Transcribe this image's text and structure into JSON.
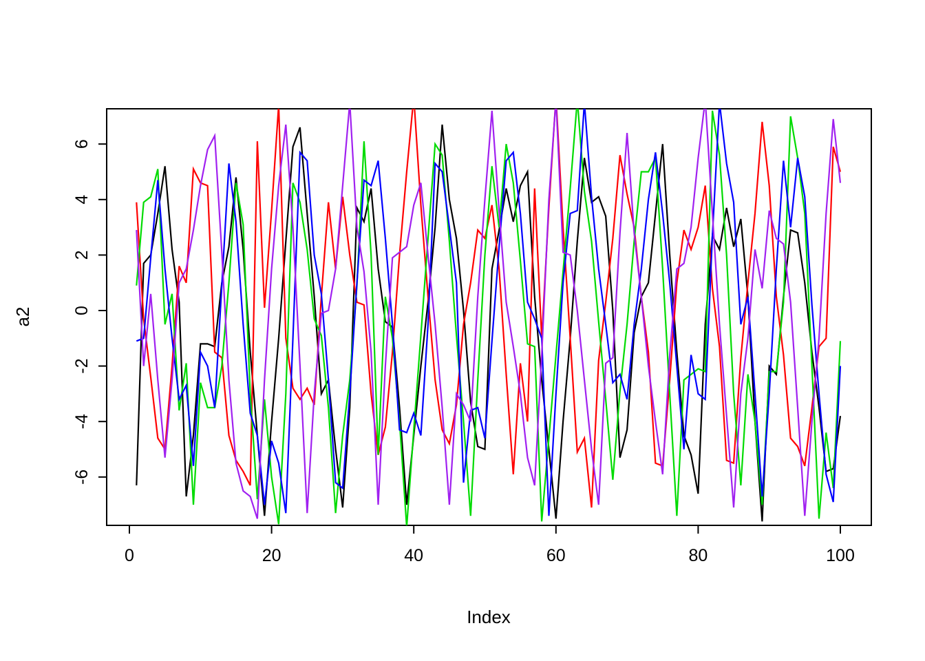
{
  "figure": {
    "background": "#FFFFFF",
    "axis_color": "#000000"
  },
  "chart_data": {
    "type": "line",
    "title": "",
    "xlabel": "Index",
    "ylabel": "a2",
    "x_range": [
      1,
      100
    ],
    "x_ticks": [
      0,
      20,
      40,
      60,
      80,
      100
    ],
    "y_ticks": [
      -6,
      -4,
      -2,
      0,
      2,
      4,
      6
    ],
    "xlim": [
      -3.2,
      104.3
    ],
    "ylim": [
      -7.74,
      7.27
    ],
    "grid": false,
    "legend_position": "none",
    "series": [
      {
        "name": "black",
        "color": "#000000",
        "values": [
          -6.3,
          1.7,
          2.0,
          3.5,
          5.2,
          2.2,
          0.3,
          -6.7,
          -4.5,
          -1.2,
          -1.2,
          -1.3,
          1.0,
          2.3,
          4.8,
          2.2,
          -1.5,
          -4.5,
          -7.4,
          -4.0,
          -1.0,
          2.5,
          5.9,
          6.6,
          3.5,
          0.5,
          -3.0,
          -2.5,
          -5.0,
          -7.1,
          -3.5,
          3.7,
          3.2,
          4.4,
          1.5,
          -0.4,
          -0.6,
          -3.5,
          -7.0,
          -4.5,
          -2.0,
          0.3,
          3.0,
          6.7,
          4.0,
          2.6,
          0.0,
          -3.3,
          -4.9,
          -5.0,
          1.5,
          2.9,
          4.4,
          3.2,
          4.5,
          5.0,
          0.5,
          -2.5,
          -5.0,
          -7.5,
          -4.0,
          -1.0,
          2.5,
          5.5,
          3.9,
          4.1,
          3.4,
          0.0,
          -5.3,
          -4.3,
          -0.8,
          0.5,
          1.0,
          3.5,
          6.0,
          2.0,
          -1.5,
          -4.5,
          -5.2,
          -6.6,
          -0.5,
          2.7,
          2.2,
          3.7,
          2.3,
          3.3,
          0.5,
          -4.0,
          -7.6,
          -2.0,
          -2.3,
          0.5,
          2.9,
          2.8,
          1.0,
          -1.5,
          -3.5,
          -5.8,
          -5.7,
          -3.8
        ]
      },
      {
        "name": "red",
        "color": "#FF0000",
        "values": [
          3.9,
          -0.3,
          -2.4,
          -4.6,
          -5.0,
          -2.0,
          1.6,
          1.0,
          5.1,
          4.6,
          4.5,
          -1.5,
          -1.7,
          -4.5,
          -5.4,
          -5.8,
          -6.3,
          6.1,
          0.1,
          3.6,
          7.4,
          -1.0,
          -2.8,
          -3.2,
          -2.8,
          -3.4,
          0.5,
          3.9,
          1.5,
          4.1,
          2.0,
          0.3,
          0.2,
          -3.0,
          -5.2,
          -4.2,
          -1.5,
          2.0,
          5.0,
          7.7,
          3.8,
          0.5,
          -2.5,
          -4.3,
          -4.8,
          -3.4,
          -0.5,
          1.0,
          2.9,
          2.6,
          3.8,
          1.5,
          -2.3,
          -5.9,
          -1.9,
          -4.0,
          4.4,
          -1.0,
          3.7,
          7.7,
          3.0,
          -1.0,
          -5.1,
          -4.6,
          -7.1,
          -1.8,
          0.3,
          2.6,
          5.6,
          4.2,
          3.0,
          0.5,
          -1.5,
          -5.5,
          -5.6,
          -2.5,
          1.0,
          2.9,
          2.2,
          3.0,
          4.5,
          0.8,
          -1.3,
          -5.4,
          -5.5,
          -1.7,
          1.0,
          3.5,
          6.8,
          4.5,
          0.5,
          -1.6,
          -4.6,
          -4.9,
          -5.6,
          -3.5,
          -1.3,
          -1.0,
          5.9,
          5.0
        ]
      },
      {
        "name": "green",
        "color": "#00DB00",
        "values": [
          0.9,
          3.9,
          4.1,
          5.1,
          -0.5,
          0.6,
          -3.6,
          -1.9,
          -7.0,
          -2.6,
          -3.5,
          -3.5,
          -2.0,
          1.0,
          4.6,
          3.1,
          -3.0,
          -6.8,
          -3.2,
          -6.0,
          -7.7,
          -3.0,
          4.6,
          3.9,
          2.2,
          -0.3,
          -0.9,
          -3.5,
          -7.3,
          -4.5,
          -2.5,
          0.9,
          6.1,
          2.0,
          -5.2,
          0.5,
          -1.0,
          -4.0,
          -7.8,
          -4.3,
          -0.9,
          2.6,
          6.0,
          5.6,
          2.5,
          -0.9,
          -4.0,
          -7.4,
          -2.5,
          2.0,
          5.2,
          3.0,
          6.0,
          4.6,
          1.8,
          -1.2,
          -1.3,
          -7.6,
          -4.6,
          -1.6,
          1.4,
          4.4,
          7.6,
          4.3,
          2.5,
          -0.4,
          -3.2,
          -6.1,
          -2.9,
          -0.5,
          2.5,
          5.0,
          5.0,
          5.5,
          1.5,
          -3.0,
          -7.4,
          -2.5,
          -2.3,
          -2.1,
          -2.2,
          7.2,
          5.6,
          2.0,
          -3.0,
          -6.3,
          -2.3,
          -4.0,
          -7.0,
          -2.2,
          -2.2,
          0.3,
          7.0,
          5.5,
          3.5,
          -2.0,
          -7.5,
          -4.4,
          -6.4,
          -1.1
        ]
      },
      {
        "name": "blue",
        "color": "#0000FF",
        "values": [
          -1.1,
          -1.0,
          1.9,
          4.7,
          1.5,
          -1.0,
          -3.2,
          -2.7,
          -5.6,
          -1.5,
          -2.0,
          -3.5,
          0.9,
          5.3,
          3.2,
          -0.5,
          -3.7,
          -4.5,
          -7.0,
          -4.7,
          -5.5,
          -7.3,
          -1.0,
          5.7,
          5.4,
          2.0,
          0.6,
          -2.5,
          -6.2,
          -6.4,
          -3.0,
          1.0,
          4.7,
          4.5,
          5.4,
          2.6,
          -0.5,
          -4.3,
          -4.4,
          -3.7,
          -4.5,
          -0.5,
          5.3,
          5.0,
          3.0,
          1.0,
          -6.2,
          -3.6,
          -3.5,
          -4.6,
          -1.1,
          2.3,
          5.4,
          5.7,
          3.5,
          0.3,
          -0.3,
          -1.0,
          -7.4,
          -3.0,
          1.0,
          3.5,
          3.6,
          7.5,
          4.1,
          1.5,
          -0.5,
          -2.6,
          -2.3,
          -3.2,
          -0.5,
          1.5,
          4.0,
          5.7,
          3.5,
          1.0,
          -2.0,
          -5.0,
          -1.6,
          -3.0,
          -3.2,
          2.7,
          7.5,
          5.3,
          3.9,
          -0.5,
          0.5,
          -3.0,
          -6.7,
          -3.0,
          1.5,
          5.4,
          3.0,
          5.5,
          4.1,
          0.2,
          -3.0,
          -5.9,
          -6.9,
          -2.0
        ]
      },
      {
        "name": "purple",
        "color": "#A020F0",
        "values": [
          2.9,
          -2.0,
          0.6,
          -2.5,
          -5.3,
          -2.5,
          1.0,
          1.5,
          2.9,
          4.5,
          5.8,
          6.3,
          2.1,
          -2.5,
          -5.5,
          -6.5,
          -6.7,
          -7.5,
          -2.5,
          1.5,
          4.5,
          6.7,
          3.0,
          -2.0,
          -7.3,
          -3.0,
          -0.1,
          0.0,
          1.5,
          4.5,
          7.5,
          3.0,
          1.4,
          -1.5,
          -7.0,
          -2.0,
          1.9,
          2.1,
          2.3,
          3.8,
          4.6,
          2.0,
          -0.5,
          -3.5,
          -7.0,
          -3.0,
          -3.4,
          -4.0,
          0.5,
          4.0,
          7.2,
          3.6,
          0.3,
          -1.3,
          -3.0,
          -5.3,
          -6.3,
          -1.6,
          4.0,
          7.6,
          2.1,
          2.0,
          0.0,
          -2.5,
          -5.0,
          -7.0,
          -1.9,
          -1.7,
          2.8,
          6.4,
          2.8,
          0.5,
          -2.0,
          -4.0,
          -5.9,
          -1.6,
          1.5,
          1.7,
          3.0,
          5.5,
          7.6,
          3.5,
          -0.5,
          -3.8,
          -7.1,
          -3.0,
          -1.0,
          2.2,
          0.8,
          3.6,
          2.6,
          2.4,
          0.3,
          -3.5,
          -7.4,
          -4.0,
          -1.0,
          3.5,
          6.9,
          4.6
        ]
      }
    ]
  }
}
